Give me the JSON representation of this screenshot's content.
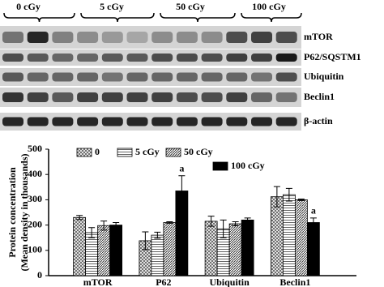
{
  "blot": {
    "lanes": [
      "0 cGy",
      "5 cGy",
      "50 cGy",
      "100 cGy"
    ],
    "bands": [
      "mTOR",
      "P62/SQSTM1",
      "Ubiquitin",
      "Beclin1",
      "β-actin"
    ]
  },
  "chart_data": {
    "type": "bar",
    "ylabel": [
      "Protein concentration",
      "(Mean density in thousands)"
    ],
    "categories": [
      "mTOR",
      "P62",
      "Ubiquitin",
      "Beclin1"
    ],
    "series": [
      {
        "name": "0",
        "pattern": "crosshatch",
        "color": "#555555",
        "values": [
          230,
          138,
          215,
          312
        ],
        "errors": [
          8,
          35,
          20,
          40
        ]
      },
      {
        "name": "5 cGy",
        "pattern": "horizontal",
        "color": "#555555",
        "values": [
          170,
          160,
          185,
          320
        ],
        "errors": [
          20,
          12,
          35,
          25
        ]
      },
      {
        "name": "50 cGy",
        "pattern": "diagonal",
        "color": "#333333",
        "values": [
          198,
          210,
          205,
          300
        ],
        "errors": [
          18,
          3,
          8,
          3
        ]
      },
      {
        "name": "100 cGy",
        "pattern": "solid",
        "color": "#000000",
        "values": [
          200,
          335,
          220,
          210
        ],
        "errors": [
          10,
          60,
          8,
          18
        ]
      }
    ],
    "annotations": [
      {
        "text": "a",
        "category": "P62",
        "series": "100 cGy"
      },
      {
        "text": "a",
        "category": "Beclin1",
        "series": "100 cGy"
      }
    ],
    "ylim": [
      0,
      500
    ],
    "yticks": [
      0,
      100,
      200,
      300,
      400,
      500
    ]
  }
}
